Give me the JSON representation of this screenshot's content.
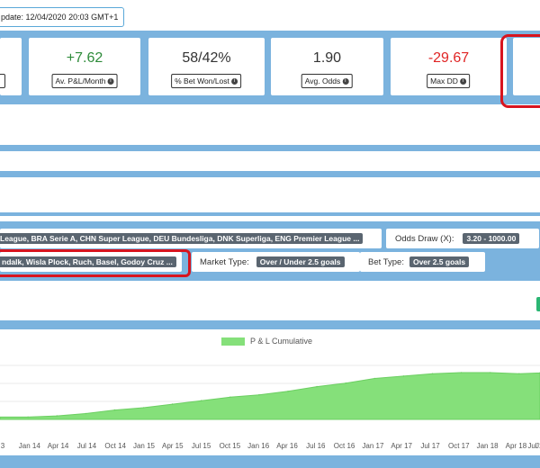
{
  "header": {
    "last_update": "pdate: 12/04/2020 20:03 GMT+1"
  },
  "metrics": [
    {
      "value": "+7.62",
      "label": "Av. P&L/Month",
      "tone": "positive"
    },
    {
      "value": "58/42%",
      "label": "% Bet Won/Lost",
      "tone": "neutral"
    },
    {
      "value": "1.90",
      "label": "Avg. Odds",
      "tone": "neutral"
    },
    {
      "value": "-29.67",
      "label": "Max DD",
      "tone": "negative"
    }
  ],
  "filters": {
    "leagues": "League, BRA Serie A, CHN Super League, DEU Bundesliga, DNK Superliga, ENG Premier League ...",
    "odds_draw_label": "Odds Draw (X):",
    "odds_draw_value": "3.20 - 1000.00",
    "teams": "ndalk, Wisla Plock, Ruch, Basel, Godoy Cruz ...",
    "market_type_label": "Market Type:",
    "market_type_value": "Over / Under 2.5 goals",
    "bet_type_label": "Bet Type:",
    "bet_type_value": "Over 2.5 goals"
  },
  "info_icon": "info-circle-icon",
  "colors": {
    "band": "#7bb3de",
    "area_fill": "#85e07a",
    "positive": "#2e8b3a",
    "negative": "#e02424",
    "highlight_ring": "#d8141e"
  },
  "chart_data": {
    "type": "area",
    "legend": "P & L Cumulative",
    "legend_position": "top-center",
    "grid": true,
    "x": [
      "Jan 14",
      "Apr 14",
      "Jul 14",
      "Oct 14",
      "Jan 15",
      "Apr 15",
      "Jul 15",
      "Oct 15",
      "Jan 16",
      "Apr 16",
      "Jul 16",
      "Oct 16",
      "Jan 17",
      "Apr 17",
      "Jul 17",
      "Oct 17",
      "Jan 18",
      "Apr 18",
      "Jul 18"
    ],
    "tick_labels": [
      "3",
      "Jan 14",
      "Apr 14",
      "Jul 14",
      "Oct 14",
      "Jan 15",
      "Apr 15",
      "Jul 15",
      "Oct 15",
      "Jan 16",
      "Apr 16",
      "Jul 16",
      "Oct 16",
      "Jan 17",
      "Apr 17",
      "Jul 17",
      "Oct 17",
      "Jan 18",
      "Apr 18",
      "Jul 18",
      "J"
    ],
    "series": [
      {
        "name": "P & L Cumulative",
        "values": [
          2,
          3,
          5,
          8,
          10,
          13,
          16,
          19,
          21,
          24,
          28,
          31,
          35,
          37,
          39,
          40,
          40,
          39,
          40
        ]
      }
    ],
    "ylim": [
      0,
      60
    ]
  }
}
